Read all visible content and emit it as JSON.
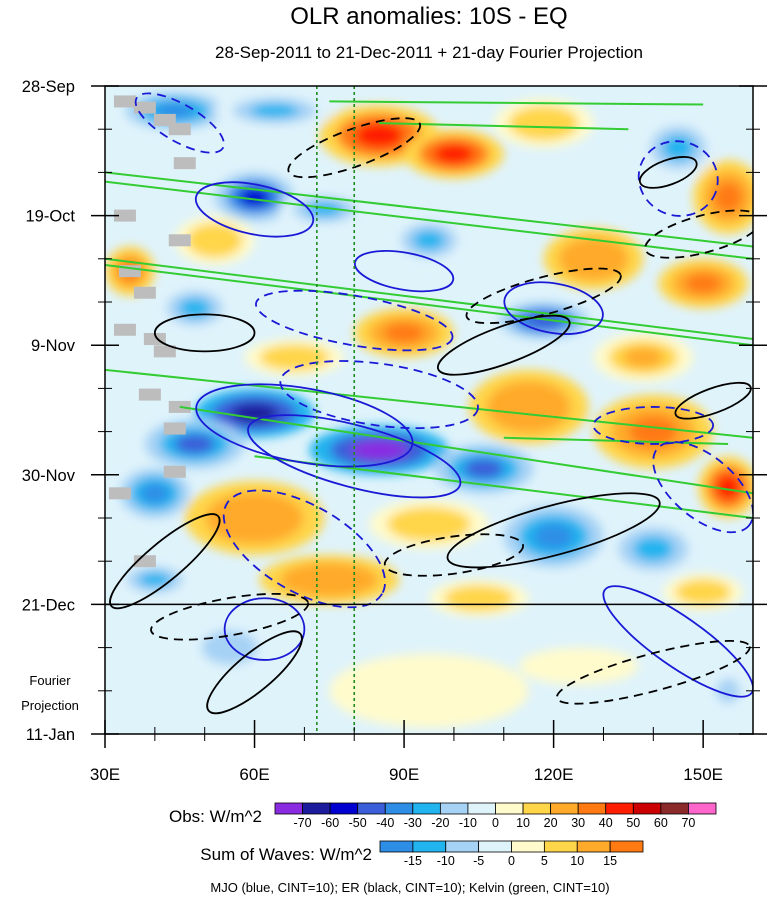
{
  "chart_data": {
    "type": "heatmap",
    "title": "OLR anomalies: 10S - EQ",
    "subtitle": "28-Sep-2011 to 21-Dec-2011 + 21-day Fourier Projection",
    "xlabel": "",
    "ylabel": "",
    "xlim": [
      30,
      160
    ],
    "x_ticks": [
      30,
      60,
      90,
      120,
      150
    ],
    "x_tick_labels": [
      "30E",
      "60E",
      "90E",
      "120E",
      "150E"
    ],
    "y_tick_labels": [
      "28-Sep",
      "19-Oct",
      "9-Nov",
      "30-Nov",
      "21-Dec",
      "11-Jan"
    ],
    "y_tick_days": [
      0,
      21,
      42,
      63,
      84,
      105
    ],
    "projection_label_line1": "Fourier",
    "projection_label_line2": "Projection",
    "projection_start_day": 84,
    "reference_longitudes": [
      72.5,
      80
    ],
    "obs_colorbar": {
      "label": "Obs: W/m^2",
      "levels": [
        -70,
        -60,
        -50,
        -40,
        -30,
        -20,
        -10,
        0,
        10,
        20,
        30,
        40,
        50,
        60,
        70
      ],
      "colors": [
        "#8a2be2",
        "#1c1c9c",
        "#0000d0",
        "#3a5fd9",
        "#2e8ee6",
        "#22b4ef",
        "#a6d2f5",
        "#dff3fb",
        "#fffbcc",
        "#ffd64a",
        "#ffaa2a",
        "#ff7a12",
        "#ff1e00",
        "#cc0000",
        "#8b2a2a",
        "#ff66cc"
      ]
    },
    "waves_colorbar": {
      "label": "Sum of Waves: W/m^2",
      "levels": [
        -15,
        -10,
        -5,
        0,
        5,
        10,
        15
      ],
      "colors": [
        "#2e8ee6",
        "#22b4ef",
        "#a6d2f5",
        "#dff3fb",
        "#fffbcc",
        "#ffd64a",
        "#ffaa2a",
        "#ff7a12"
      ]
    },
    "caption": "MJO (blue, CINT=10); ER (black, CINT=10); Kelvin (green, CINT=10)",
    "blobs": [
      {
        "lon": 44,
        "day": 4,
        "rx": 10,
        "ry": 3,
        "v": -30
      },
      {
        "lon": 85,
        "day": 8,
        "rx": 12,
        "ry": 5,
        "v": 45
      },
      {
        "lon": 100,
        "day": 11,
        "rx": 10,
        "ry": 4,
        "v": 50
      },
      {
        "lon": 64,
        "day": 4,
        "rx": 12,
        "ry": 3,
        "v": -25
      },
      {
        "lon": 118,
        "day": 6,
        "rx": 10,
        "ry": 4,
        "v": 20
      },
      {
        "lon": 145,
        "day": 10,
        "rx": 8,
        "ry": 5,
        "v": -20
      },
      {
        "lon": 155,
        "day": 18,
        "rx": 7,
        "ry": 6,
        "v": 40
      },
      {
        "lon": 60,
        "day": 18,
        "rx": 8,
        "ry": 4,
        "v": -55
      },
      {
        "lon": 74,
        "day": 20,
        "rx": 9,
        "ry": 3,
        "v": -20
      },
      {
        "lon": 35,
        "day": 30,
        "rx": 5,
        "ry": 4,
        "v": 40
      },
      {
        "lon": 52,
        "day": 25,
        "rx": 8,
        "ry": 4,
        "v": 20
      },
      {
        "lon": 95,
        "day": 25,
        "rx": 8,
        "ry": 4,
        "v": -20
      },
      {
        "lon": 128,
        "day": 28,
        "rx": 10,
        "ry": 5,
        "v": 30
      },
      {
        "lon": 150,
        "day": 32,
        "rx": 9,
        "ry": 4,
        "v": 40
      },
      {
        "lon": 118,
        "day": 38,
        "rx": 9,
        "ry": 3,
        "v": -45
      },
      {
        "lon": 90,
        "day": 40,
        "rx": 10,
        "ry": 4,
        "v": 40
      },
      {
        "lon": 68,
        "day": 44,
        "rx": 10,
        "ry": 3,
        "v": 20
      },
      {
        "lon": 48,
        "day": 36,
        "rx": 8,
        "ry": 4,
        "v": -20
      },
      {
        "lon": 138,
        "day": 44,
        "rx": 10,
        "ry": 4,
        "v": 25
      },
      {
        "lon": 60,
        "day": 53,
        "rx": 12,
        "ry": 4,
        "v": -60
      },
      {
        "lon": 85,
        "day": 59,
        "rx": 14,
        "ry": 4,
        "v": -70
      },
      {
        "lon": 106,
        "day": 62,
        "rx": 10,
        "ry": 4,
        "v": -40
      },
      {
        "lon": 48,
        "day": 58,
        "rx": 10,
        "ry": 4,
        "v": -40
      },
      {
        "lon": 115,
        "day": 52,
        "rx": 12,
        "ry": 6,
        "v": 30
      },
      {
        "lon": 140,
        "day": 56,
        "rx": 12,
        "ry": 6,
        "v": 40
      },
      {
        "lon": 155,
        "day": 65,
        "rx": 6,
        "ry": 5,
        "v": 50
      },
      {
        "lon": 60,
        "day": 70,
        "rx": 14,
        "ry": 6,
        "v": 30
      },
      {
        "lon": 40,
        "day": 66,
        "rx": 7,
        "ry": 4,
        "v": -35
      },
      {
        "lon": 95,
        "day": 71,
        "rx": 12,
        "ry": 4,
        "v": 20
      },
      {
        "lon": 120,
        "day": 73,
        "rx": 10,
        "ry": 5,
        "v": -30
      },
      {
        "lon": 140,
        "day": 75,
        "rx": 10,
        "ry": 5,
        "v": -20
      },
      {
        "lon": 75,
        "day": 80,
        "rx": 14,
        "ry": 4,
        "v": 30
      },
      {
        "lon": 105,
        "day": 83,
        "rx": 10,
        "ry": 3,
        "v": 20
      },
      {
        "lon": 40,
        "day": 80,
        "rx": 8,
        "ry": 3,
        "v": -20
      },
      {
        "lon": 150,
        "day": 82,
        "rx": 8,
        "ry": 3,
        "v": 20
      },
      {
        "lon": 55,
        "day": 91,
        "rx": 8,
        "ry": 4,
        "v": -15
      },
      {
        "lon": 125,
        "day": 94,
        "rx": 12,
        "ry": 3,
        "v": 10
      },
      {
        "lon": 95,
        "day": 98,
        "rx": 20,
        "ry": 6,
        "v": 5
      },
      {
        "lon": 155,
        "day": 98,
        "rx": 6,
        "ry": 5,
        "v": -10
      }
    ],
    "missing_cells": [
      {
        "lon": 34,
        "day": 2.5
      },
      {
        "lon": 38,
        "day": 3.5
      },
      {
        "lon": 42,
        "day": 5.5
      },
      {
        "lon": 45,
        "day": 7
      },
      {
        "lon": 46,
        "day": 12.5
      },
      {
        "lon": 34,
        "day": 21
      },
      {
        "lon": 45,
        "day": 25
      },
      {
        "lon": 35,
        "day": 30
      },
      {
        "lon": 38,
        "day": 33.5
      },
      {
        "lon": 34,
        "day": 39.5
      },
      {
        "lon": 40,
        "day": 41
      },
      {
        "lon": 42,
        "day": 43
      },
      {
        "lon": 39,
        "day": 50
      },
      {
        "lon": 45,
        "day": 52
      },
      {
        "lon": 44,
        "day": 55.5
      },
      {
        "lon": 44,
        "day": 62.5
      },
      {
        "lon": 33,
        "day": 66
      },
      {
        "lon": 38,
        "day": 77
      }
    ],
    "kelvin_lines": [
      {
        "lon1": 30,
        "day1": 14,
        "lon2": 160,
        "day2": 26
      },
      {
        "lon1": 30,
        "day1": 15.5,
        "lon2": 160,
        "day2": 28
      },
      {
        "lon1": 30,
        "day1": 28,
        "lon2": 160,
        "day2": 41
      },
      {
        "lon1": 30,
        "day1": 29,
        "lon2": 160,
        "day2": 42
      },
      {
        "lon1": 30,
        "day1": 46,
        "lon2": 160,
        "day2": 57
      },
      {
        "lon1": 45,
        "day1": 52,
        "lon2": 160,
        "day2": 66
      },
      {
        "lon1": 60,
        "day1": 60,
        "lon2": 160,
        "day2": 70
      },
      {
        "lon1": 75,
        "day1": 2.5,
        "lon2": 150,
        "day2": 3
      },
      {
        "lon1": 85,
        "day1": 6,
        "lon2": 135,
        "day2": 7
      },
      {
        "lon1": 110,
        "day1": 57,
        "lon2": 155,
        "day2": 58
      }
    ],
    "mjo_contours": [
      {
        "lon": 60,
        "day": 20,
        "rx": 12,
        "ry": 4,
        "rot": 12,
        "dash": false
      },
      {
        "lon": 90,
        "day": 30,
        "rx": 10,
        "ry": 3,
        "rot": 10,
        "dash": false
      },
      {
        "lon": 70,
        "day": 55,
        "rx": 22,
        "ry": 6,
        "rot": 10,
        "dash": false
      },
      {
        "lon": 80,
        "day": 60,
        "rx": 22,
        "ry": 5,
        "rot": 15,
        "dash": false
      },
      {
        "lon": 145,
        "day": 90,
        "rx": 18,
        "ry": 4,
        "rot": 35,
        "dash": false
      },
      {
        "lon": 62,
        "day": 88,
        "rx": 8,
        "ry": 5,
        "rot": 0,
        "dash": false
      },
      {
        "lon": 120,
        "day": 36,
        "rx": 10,
        "ry": 4,
        "rot": 10,
        "dash": false
      },
      {
        "lon": 45,
        "day": 6,
        "rx": 10,
        "ry": 3,
        "rot": 30,
        "dash": true
      },
      {
        "lon": 80,
        "day": 38,
        "rx": 20,
        "ry": 4,
        "rot": 10,
        "dash": true
      },
      {
        "lon": 85,
        "day": 50,
        "rx": 20,
        "ry": 5,
        "rot": 8,
        "dash": true
      },
      {
        "lon": 145,
        "day": 15,
        "rx": 8,
        "ry": 6,
        "rot": 20,
        "dash": true
      },
      {
        "lon": 70,
        "day": 75,
        "rx": 18,
        "ry": 7,
        "rot": 30,
        "dash": true
      },
      {
        "lon": 150,
        "day": 65,
        "rx": 12,
        "ry": 5,
        "rot": 40,
        "dash": true
      },
      {
        "lon": 140,
        "day": 55,
        "rx": 12,
        "ry": 3,
        "rot": 0,
        "dash": true
      }
    ],
    "er_contours": [
      {
        "lon": 50,
        "day": 40,
        "rx": 10,
        "ry": 3,
        "rot": 0,
        "dash": false
      },
      {
        "lon": 110,
        "day": 42,
        "rx": 14,
        "ry": 3,
        "rot": -20,
        "dash": false
      },
      {
        "lon": 120,
        "day": 72,
        "rx": 22,
        "ry": 4,
        "rot": -15,
        "dash": false
      },
      {
        "lon": 42,
        "day": 77,
        "rx": 14,
        "ry": 3,
        "rot": -40,
        "dash": false
      },
      {
        "lon": 143,
        "day": 14,
        "rx": 6,
        "ry": 2,
        "rot": -20,
        "dash": false
      },
      {
        "lon": 152,
        "day": 51,
        "rx": 8,
        "ry": 2,
        "rot": -20,
        "dash": false
      },
      {
        "lon": 60,
        "day": 95,
        "rx": 12,
        "ry": 3,
        "rot": -40,
        "dash": false
      },
      {
        "lon": 118,
        "day": 34,
        "rx": 16,
        "ry": 3,
        "rot": -15,
        "dash": true
      },
      {
        "lon": 55,
        "day": 86,
        "rx": 16,
        "ry": 3,
        "rot": -10,
        "dash": true
      },
      {
        "lon": 140,
        "day": 95,
        "rx": 20,
        "ry": 3,
        "rot": -15,
        "dash": true
      },
      {
        "lon": 150,
        "day": 24,
        "rx": 12,
        "ry": 3,
        "rot": -15,
        "dash": true
      },
      {
        "lon": 80,
        "day": 10,
        "rx": 14,
        "ry": 3,
        "rot": -20,
        "dash": true
      },
      {
        "lon": 100,
        "day": 76,
        "rx": 14,
        "ry": 3,
        "rot": -8,
        "dash": true
      }
    ]
  }
}
